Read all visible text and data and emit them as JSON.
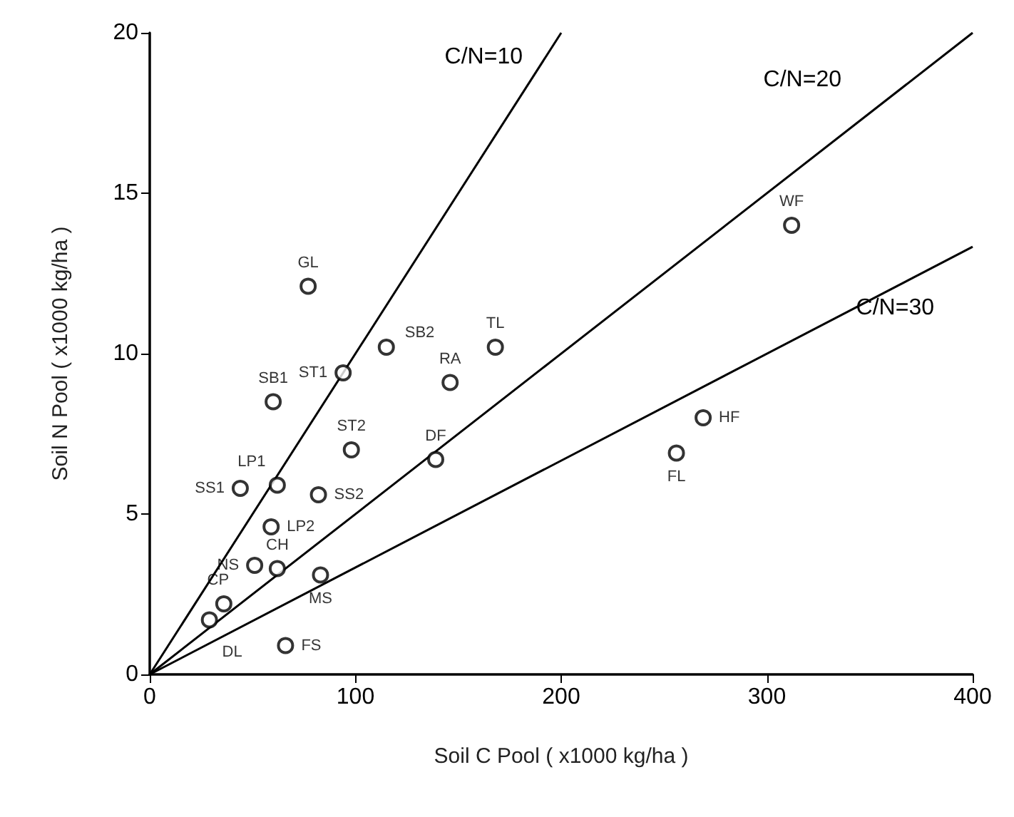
{
  "chart_data": {
    "type": "scatter",
    "xlabel": "Soil C Pool ( x1000 kg/ha )",
    "ylabel": "Soil N Pool ( x1000 kg/ha )",
    "xlim": [
      0,
      400
    ],
    "xticks": [
      0,
      100,
      200,
      300,
      400
    ],
    "ylim": [
      0,
      20
    ],
    "yticks": [
      0,
      5,
      10,
      15,
      20
    ],
    "grid": false,
    "legend": false,
    "marker": "circle",
    "series": [
      {
        "color": "#000000",
        "x": [
          77,
          60,
          94,
          115,
          168,
          146,
          98,
          139,
          44,
          62,
          82,
          59,
          51,
          62,
          83,
          36,
          29,
          66,
          312,
          269,
          256
        ],
        "values": [
          12.1,
          8.5,
          9.4,
          10.2,
          10.2,
          9.1,
          7.0,
          6.7,
          5.8,
          5.9,
          5.6,
          4.6,
          3.4,
          3.3,
          3.1,
          2.2,
          1.7,
          0.9,
          14.0,
          8.0,
          6.9
        ],
        "value_labels": [
          "GL",
          "SB1",
          "ST1",
          "SB2",
          "TL",
          "RA",
          "ST2",
          "DF",
          "SS1",
          "LP1",
          "SS2",
          "LP2",
          "NS",
          "CH",
          "MS",
          "CP",
          "DL",
          "FS",
          "WF",
          "HF",
          "FL"
        ]
      },
      {
        "type": "line",
        "name": "C/N=10",
        "marker": "none",
        "color": "#000000",
        "x": [
          0,
          200
        ],
        "values": [
          0,
          20
        ]
      },
      {
        "type": "line",
        "name": "C/N=20",
        "marker": "none",
        "color": "#000000",
        "x": [
          0,
          400
        ],
        "values": [
          0,
          20
        ]
      },
      {
        "type": "line",
        "name": "C/N=30",
        "marker": "none",
        "color": "#000000",
        "x": [
          0,
          400
        ],
        "values": [
          0,
          13.33
        ]
      }
    ]
  }
}
